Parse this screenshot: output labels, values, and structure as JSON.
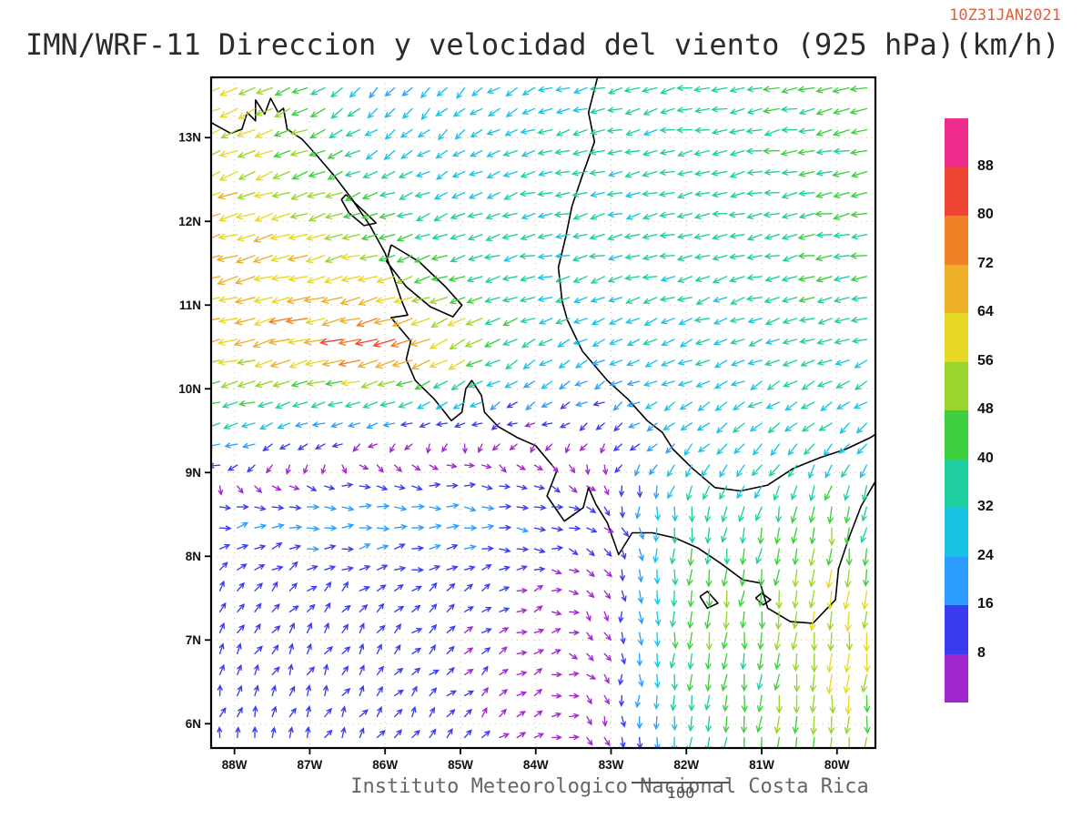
{
  "header": {
    "title": "IMN/WRF-11 Direccion y velocidad del viento (925 hPa)(km/h)",
    "timestamp": "10Z31JAN2021",
    "timestamp_color": "#e0603c"
  },
  "footer": {
    "credit": "Instituto Meteorologico Nacional Costa Rica",
    "scale_label": "100"
  },
  "chart_data": {
    "type": "vector-field-map",
    "title": "IMN/WRF-11 Direccion y velocidad del viento (925 hPa)(km/h)",
    "valid_time": "10Z31JAN2021",
    "variable": "wind direction and speed",
    "pressure_level_hpa": 925,
    "units": "km/h",
    "grid_on": true,
    "domain": {
      "lon_min": -88.31,
      "lon_max": -79.49,
      "lat_min": 5.71,
      "lat_max": 13.72
    },
    "x_ticks": {
      "lons": [
        -88,
        -87,
        -86,
        -85,
        -84,
        -83,
        -82,
        -81,
        -80
      ],
      "labels": [
        "88W",
        "87W",
        "86W",
        "85W",
        "84W",
        "83W",
        "82W",
        "81W",
        "80W"
      ]
    },
    "y_ticks": {
      "lats": [
        13,
        12,
        11,
        10,
        9,
        8,
        7,
        6
      ],
      "labels": [
        "13N",
        "12N",
        "11N",
        "10N",
        "9N",
        "8N",
        "7N",
        "6N"
      ]
    },
    "colorbar": {
      "levels": [
        8,
        16,
        24,
        32,
        40,
        48,
        56,
        64,
        72,
        80,
        88
      ],
      "colors": [
        "#a227cf",
        "#3b3bf0",
        "#2d9dff",
        "#19c3e6",
        "#1fcfa0",
        "#3ecf3e",
        "#9ad52d",
        "#e8d826",
        "#efae27",
        "#ef8126",
        "#ef4533",
        "#ee2d8c"
      ],
      "legend_position": "right"
    },
    "wind_grid": {
      "note": "u,v components in km/h on a 1-degree control grid; u east-positive, v north-positive",
      "lons": [
        -89,
        -88,
        -87,
        -86,
        -85,
        -84,
        -83,
        -82,
        -81,
        -80,
        -79
      ],
      "lats": [
        13.5,
        12.5,
        11.5,
        10.5,
        9.5,
        8.5,
        7.5,
        6.5,
        5.5
      ],
      "uv": [
        [
          [
            -60,
            -28
          ],
          [
            -55,
            -25
          ],
          [
            -38,
            -18
          ],
          [
            -14,
            -19
          ],
          [
            -18,
            -16
          ],
          [
            -26,
            -12
          ],
          [
            -33,
            -8
          ],
          [
            -34,
            -7
          ],
          [
            -37,
            -7
          ],
          [
            -44,
            -8
          ],
          [
            -46,
            -8
          ]
        ],
        [
          [
            -58,
            -22
          ],
          [
            -55,
            -20
          ],
          [
            -48,
            -18
          ],
          [
            -32,
            -14
          ],
          [
            -24,
            -12
          ],
          [
            -31,
            -8
          ],
          [
            -33,
            -8
          ],
          [
            -34,
            -7
          ],
          [
            -36,
            -7
          ],
          [
            -42,
            -7
          ],
          [
            -45,
            -8
          ]
        ],
        [
          [
            -62,
            -16
          ],
          [
            -64,
            -16
          ],
          [
            -58,
            -14
          ],
          [
            -50,
            -12
          ],
          [
            -36,
            -10
          ],
          [
            -32,
            -8
          ],
          [
            -32,
            -8
          ],
          [
            -33,
            -8
          ],
          [
            -35,
            -8
          ],
          [
            -40,
            -8
          ],
          [
            -43,
            -8
          ]
        ],
        [
          [
            -55,
            -14
          ],
          [
            -60,
            -16
          ],
          [
            -68,
            -18
          ],
          [
            -82,
            -22
          ],
          [
            -55,
            -28
          ],
          [
            -30,
            -16
          ],
          [
            -26,
            -12
          ],
          [
            -28,
            -12
          ],
          [
            -31,
            -12
          ],
          [
            -33,
            -12
          ],
          [
            -35,
            -12
          ]
        ],
        [
          [
            -42,
            -14
          ],
          [
            -30,
            -10
          ],
          [
            -16,
            -6
          ],
          [
            -8,
            -4
          ],
          [
            -5,
            -3
          ],
          [
            -5,
            -3
          ],
          [
            -7,
            -5
          ],
          [
            -22,
            -16
          ],
          [
            -26,
            -18
          ],
          [
            -24,
            -20
          ],
          [
            -18,
            -22
          ]
        ],
        [
          [
            8,
            4
          ],
          [
            18,
            2
          ],
          [
            21,
            1
          ],
          [
            22,
            0
          ],
          [
            20,
            -1
          ],
          [
            17,
            -2
          ],
          [
            6,
            -6
          ],
          [
            -4,
            -40
          ],
          [
            -8,
            -38
          ],
          [
            -6,
            -45
          ],
          [
            -12,
            -30
          ]
        ],
        [
          [
            4,
            12
          ],
          [
            6,
            9
          ],
          [
            7,
            8
          ],
          [
            8,
            7
          ],
          [
            8,
            5
          ],
          [
            6,
            2
          ],
          [
            2,
            -7
          ],
          [
            -4,
            -48
          ],
          [
            -6,
            -44
          ],
          [
            -4,
            -62
          ],
          [
            -8,
            -42
          ]
        ],
        [
          [
            3,
            15
          ],
          [
            4,
            10
          ],
          [
            5,
            9
          ],
          [
            6,
            8
          ],
          [
            6,
            6
          ],
          [
            5,
            3
          ],
          [
            2,
            -6
          ],
          [
            -3,
            -40
          ],
          [
            -5,
            -42
          ],
          [
            -3,
            -58
          ],
          [
            -6,
            -38
          ]
        ],
        [
          [
            3,
            13
          ],
          [
            3,
            11
          ],
          [
            4,
            10
          ],
          [
            5,
            9
          ],
          [
            6,
            7
          ],
          [
            5,
            4
          ],
          [
            2,
            -6
          ],
          [
            -2,
            -30
          ],
          [
            -3,
            -44
          ],
          [
            -3,
            -48
          ],
          [
            -5,
            -34
          ]
        ]
      ]
    }
  }
}
